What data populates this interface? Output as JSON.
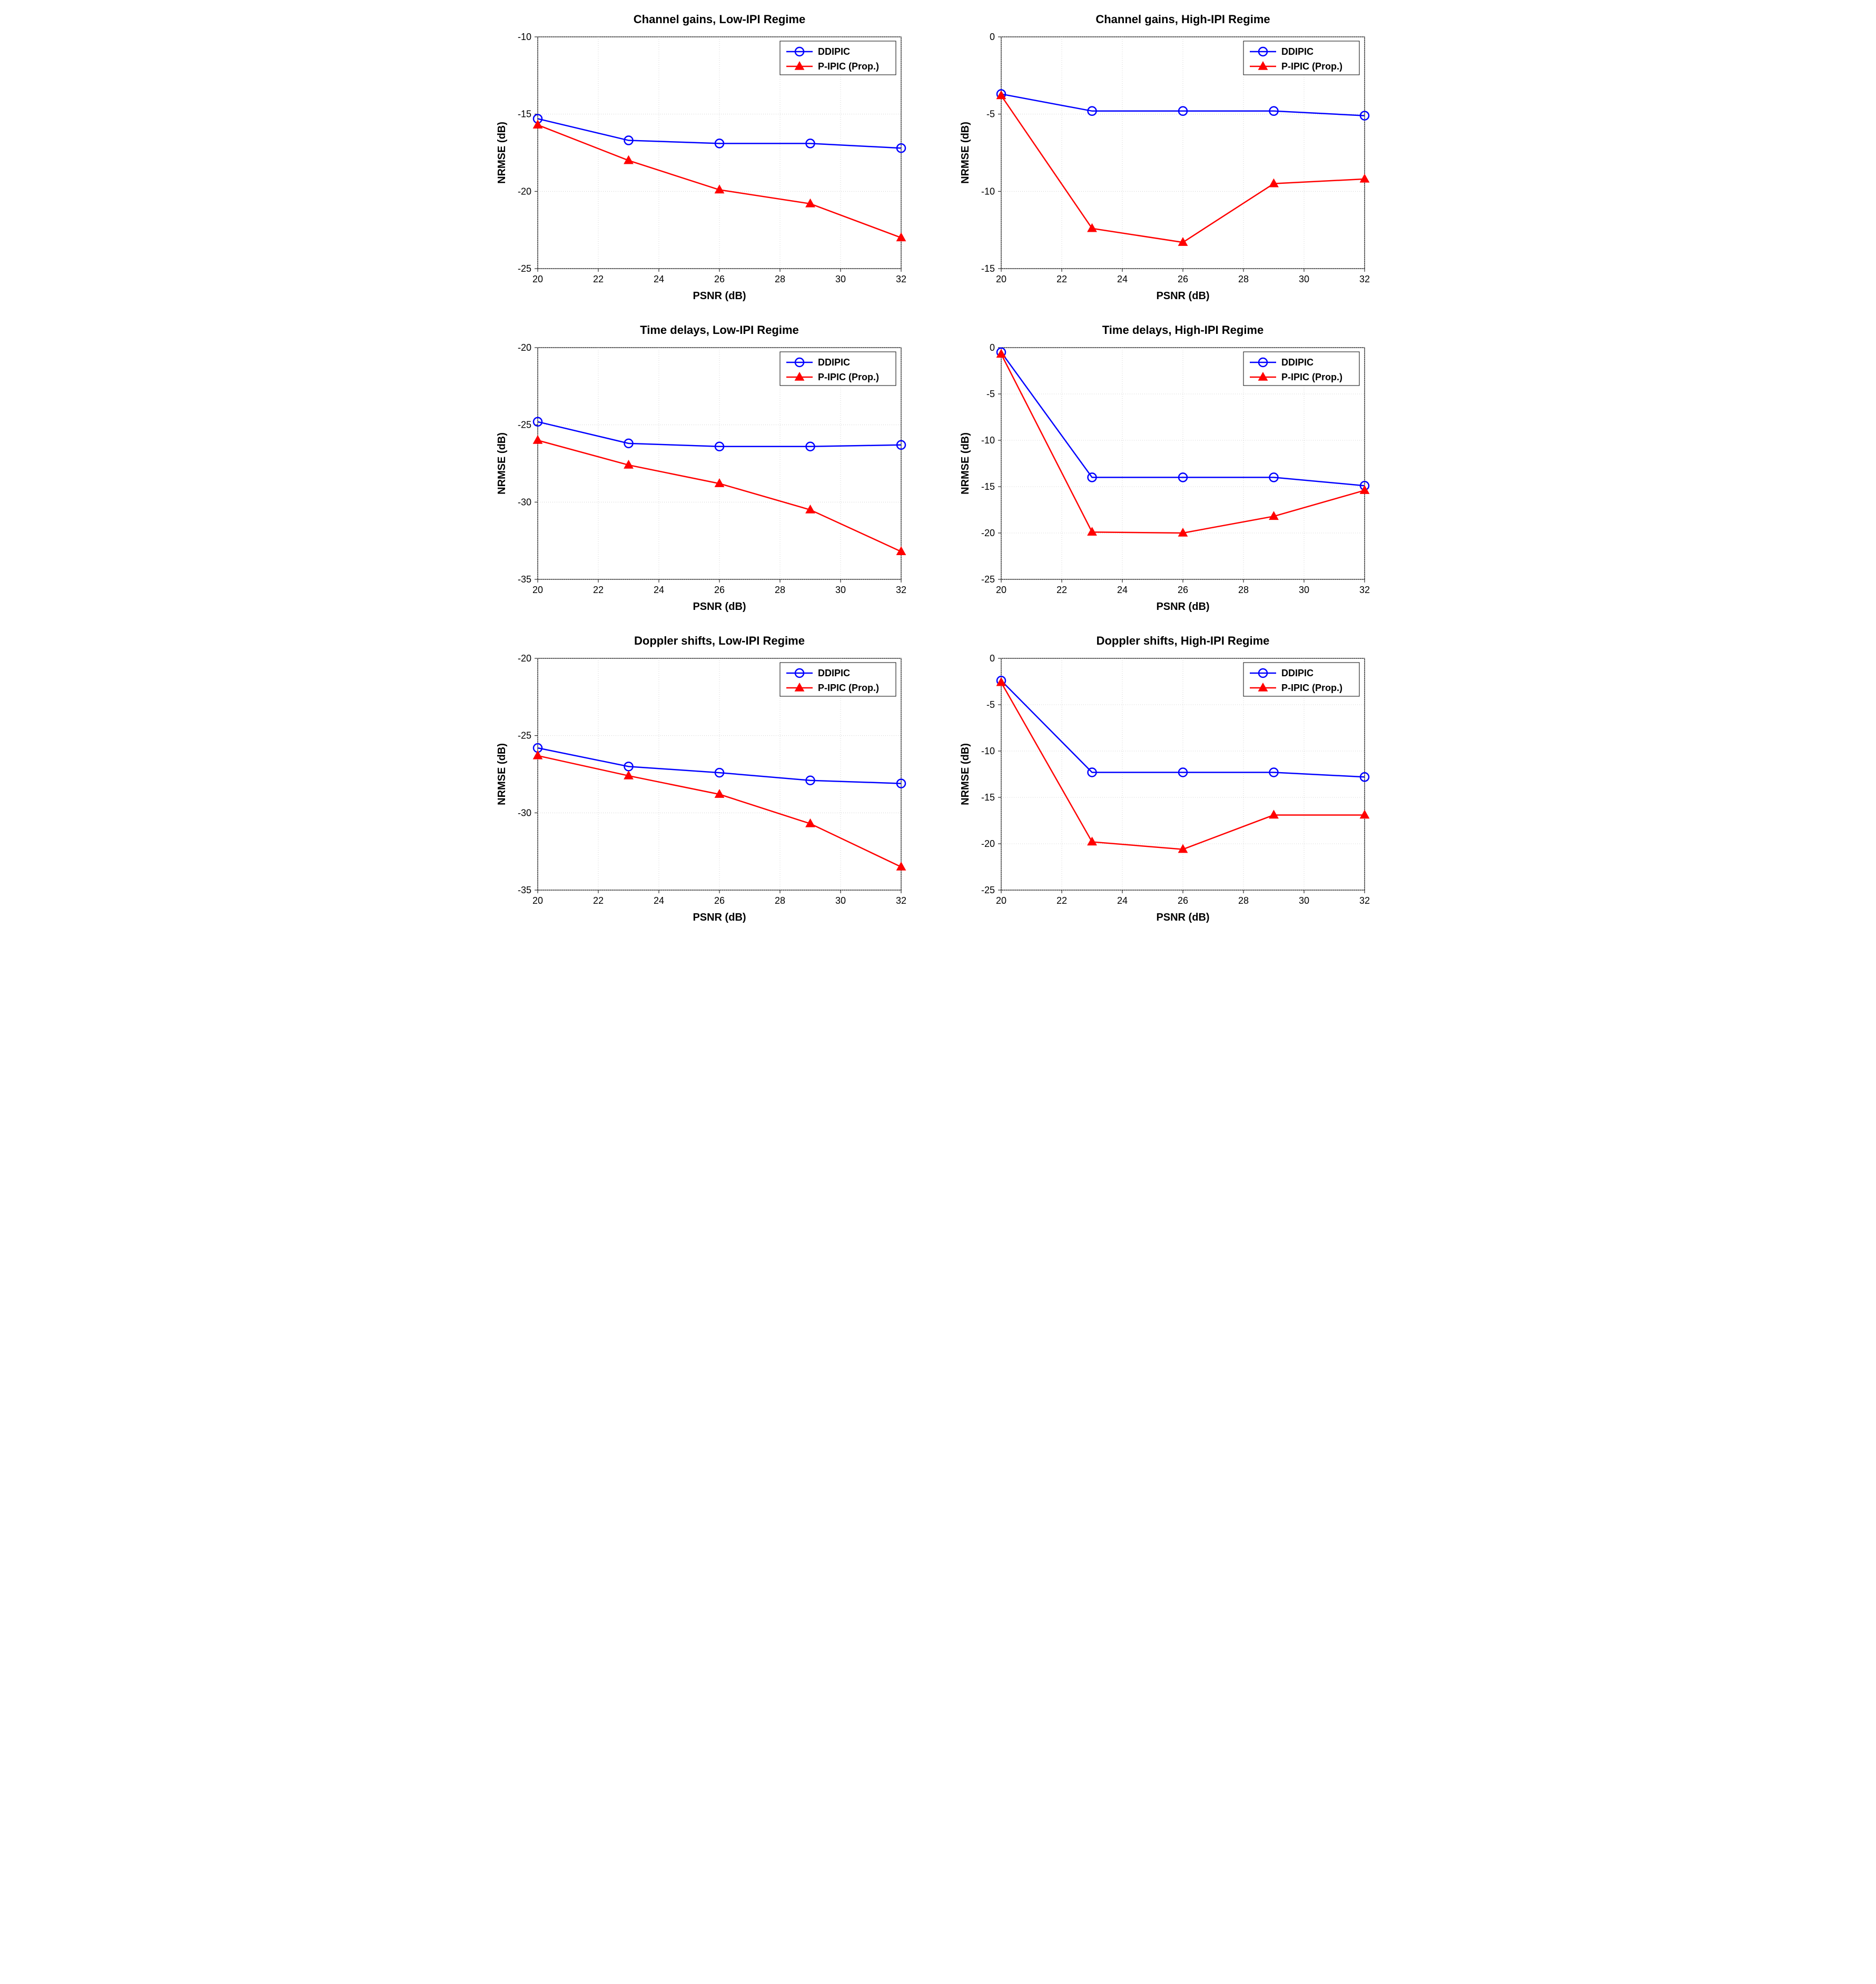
{
  "meta": {
    "background_color": "#ffffff",
    "grid_color": "#bfbfbf",
    "axis_color": "#000000",
    "title_fontsize": 22,
    "label_fontsize": 20,
    "tick_fontsize": 18,
    "legend_fontsize": 18
  },
  "legend": {
    "items": [
      {
        "label": "DDIPIC",
        "color": "#0000ff",
        "marker": "circle",
        "line_width": 2.5
      },
      {
        "label": "P-IPIC (Prop.)",
        "color": "#ff0000",
        "marker": "triangle",
        "line_width": 2.5
      }
    ]
  },
  "panels": [
    {
      "id": "p11",
      "title": "Channel gains, Low-IPI Regime",
      "xlabel": "PSNR (dB)",
      "ylabel": "NRMSE (dB)",
      "xlim": [
        20,
        32
      ],
      "xtick_step": 2,
      "ylim": [
        -25,
        -10
      ],
      "ytick_step": 5,
      "x": [
        20,
        23,
        26,
        29,
        32
      ],
      "series": [
        {
          "key": "DDIPIC",
          "y": [
            -15.3,
            -16.7,
            -16.9,
            -16.9,
            -17.2
          ]
        },
        {
          "key": "P-IPIC (Prop.)",
          "y": [
            -15.7,
            -18.0,
            -19.9,
            -20.8,
            -23.0
          ]
        }
      ]
    },
    {
      "id": "p12",
      "title": "Channel gains, High-IPI Regime",
      "xlabel": "PSNR (dB)",
      "ylabel": "NRMSE (dB)",
      "xlim": [
        20,
        32
      ],
      "xtick_step": 2,
      "ylim": [
        -15,
        0
      ],
      "ytick_step": 5,
      "x": [
        20,
        23,
        26,
        29,
        32
      ],
      "series": [
        {
          "key": "DDIPIC",
          "y": [
            -3.7,
            -4.8,
            -4.8,
            -4.8,
            -5.1
          ]
        },
        {
          "key": "P-IPIC (Prop.)",
          "y": [
            -3.8,
            -12.4,
            -13.3,
            -9.5,
            -9.2
          ]
        }
      ]
    },
    {
      "id": "p21",
      "title": "Time delays, Low-IPI Regime",
      "xlabel": "PSNR (dB)",
      "ylabel": "NRMSE (dB)",
      "xlim": [
        20,
        32
      ],
      "xtick_step": 2,
      "ylim": [
        -35,
        -20
      ],
      "ytick_step": 5,
      "x": [
        20,
        23,
        26,
        29,
        32
      ],
      "series": [
        {
          "key": "DDIPIC",
          "y": [
            -24.8,
            -26.2,
            -26.4,
            -26.4,
            -26.3
          ]
        },
        {
          "key": "P-IPIC (Prop.)",
          "y": [
            -26.0,
            -27.6,
            -28.8,
            -30.5,
            -33.2
          ]
        }
      ]
    },
    {
      "id": "p22",
      "title": "Time delays, High-IPI Regime",
      "xlabel": "PSNR (dB)",
      "ylabel": "NRMSE (dB)",
      "xlim": [
        20,
        32
      ],
      "xtick_step": 2,
      "ylim": [
        -25,
        0
      ],
      "ytick_step": 5,
      "x": [
        20,
        23,
        26,
        29,
        32
      ],
      "series": [
        {
          "key": "DDIPIC",
          "y": [
            -0.5,
            -14.0,
            -14.0,
            -14.0,
            -14.9
          ]
        },
        {
          "key": "P-IPIC (Prop.)",
          "y": [
            -0.7,
            -19.9,
            -20.0,
            -18.2,
            -15.4
          ]
        }
      ]
    },
    {
      "id": "p31",
      "title": "Doppler shifts, Low-IPI Regime",
      "xlabel": "PSNR (dB)",
      "ylabel": "NRMSE (dB)",
      "xlim": [
        20,
        32
      ],
      "xtick_step": 2,
      "ylim": [
        -35,
        -20
      ],
      "ytick_step": 5,
      "x": [
        20,
        23,
        26,
        29,
        32
      ],
      "series": [
        {
          "key": "DDIPIC",
          "y": [
            -25.8,
            -27.0,
            -27.4,
            -27.9,
            -28.1
          ]
        },
        {
          "key": "P-IPIC (Prop.)",
          "y": [
            -26.3,
            -27.6,
            -28.8,
            -30.7,
            -33.5
          ]
        }
      ]
    },
    {
      "id": "p32",
      "title": "Doppler shifts, High-IPI Regime",
      "xlabel": "PSNR (dB)",
      "ylabel": "NRMSE (dB)",
      "xlim": [
        20,
        32
      ],
      "xtick_step": 2,
      "ylim": [
        -25,
        0
      ],
      "ytick_step": 5,
      "x": [
        20,
        23,
        26,
        29,
        32
      ],
      "series": [
        {
          "key": "DDIPIC",
          "y": [
            -2.4,
            -12.3,
            -12.3,
            -12.3,
            -12.8
          ]
        },
        {
          "key": "P-IPIC (Prop.)",
          "y": [
            -2.6,
            -19.8,
            -20.6,
            -16.9,
            -16.9
          ]
        }
      ]
    }
  ]
}
